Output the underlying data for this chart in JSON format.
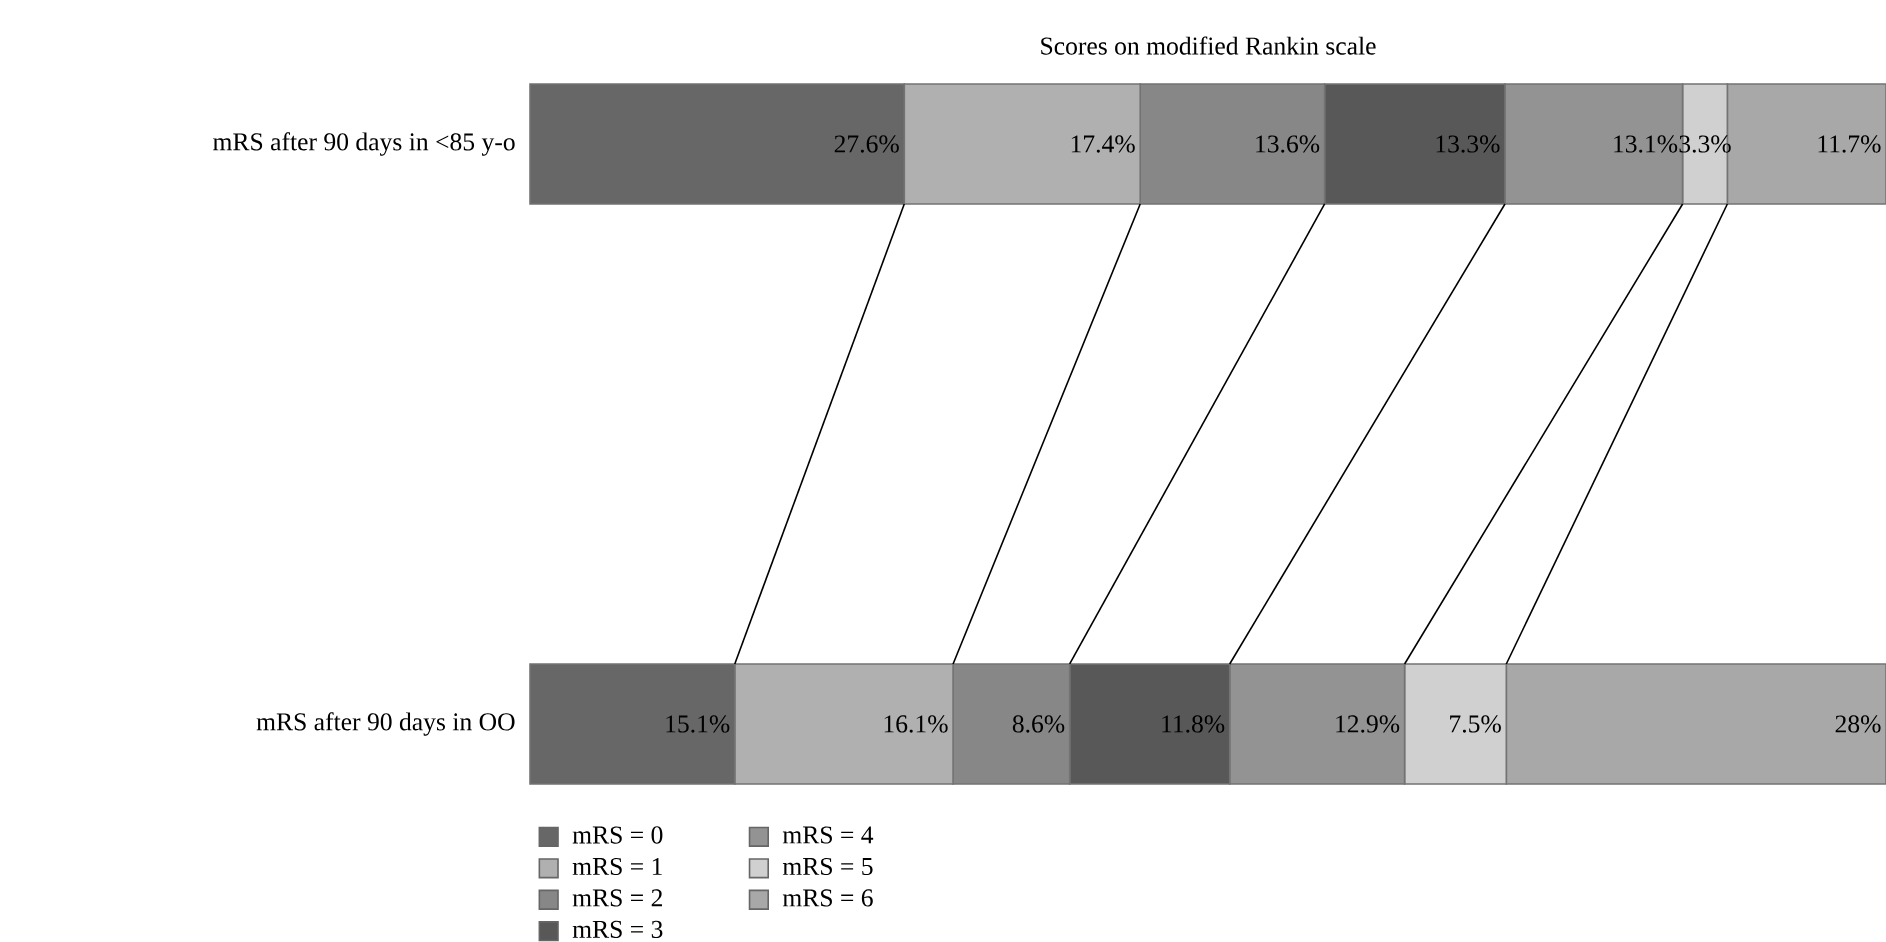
{
  "chart_data": {
    "type": "bar",
    "orientation": "horizontal",
    "stacked": true,
    "title": "Scores on modified Rankin scale",
    "categories": [
      "mRS after 90 days in <85 y-o",
      "mRS after 90 days in OO"
    ],
    "xlim": [
      0,
      100
    ],
    "tick_labels": "y",
    "legend": "bottom left",
    "series": [
      {
        "name": "mRS = 0",
        "color": "#666766",
        "values": [
          27.6,
          15.1
        ],
        "value_labels": [
          "27.6%",
          "15.1%"
        ]
      },
      {
        "name": "mRS = 1",
        "color": "#b0b0b0",
        "values": [
          17.4,
          16.1
        ],
        "value_labels": [
          "17.4%",
          "16.1%"
        ]
      },
      {
        "name": "mRS = 2",
        "color": "#878787",
        "values": [
          13.6,
          8.6
        ],
        "value_labels": [
          "13.6%",
          "8.6%"
        ]
      },
      {
        "name": "mRS = 3",
        "color": "#585858",
        "values": [
          13.3,
          11.8
        ],
        "value_labels": [
          "13.3%",
          "11.8%"
        ]
      },
      {
        "name": "mRS = 4",
        "color": "#939393",
        "values": [
          13.1,
          12.9
        ],
        "value_labels": [
          "13.1%",
          "12.9%"
        ]
      },
      {
        "name": "mRS = 5",
        "color": "#d0d0d0",
        "values": [
          3.3,
          7.5
        ],
        "value_labels": [
          "3.3%",
          "7.5%"
        ]
      },
      {
        "name": "mRS = 6",
        "color": "#a8a8a8",
        "values": [
          11.7,
          28
        ],
        "value_labels": [
          "11.7%",
          "28%"
        ]
      }
    ]
  }
}
